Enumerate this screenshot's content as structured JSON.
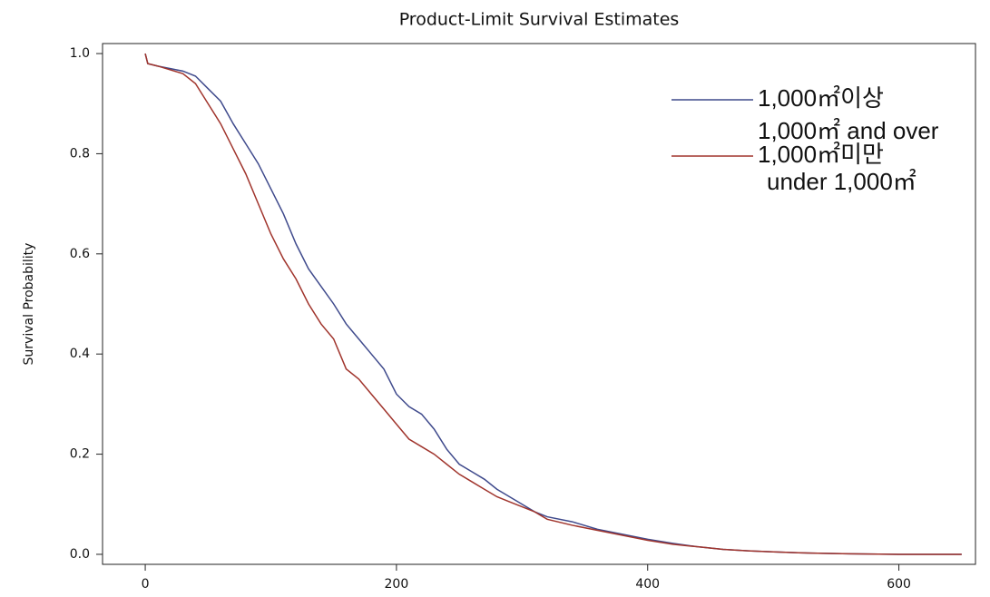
{
  "chart_data": {
    "type": "line",
    "title": "Product-Limit Survival Estimates",
    "y_label": "Survival Probability",
    "x": [
      0,
      2,
      10,
      30,
      40,
      50,
      60,
      70,
      80,
      90,
      100,
      110,
      120,
      130,
      140,
      150,
      160,
      170,
      180,
      190,
      200,
      210,
      220,
      230,
      240,
      250,
      260,
      270,
      280,
      290,
      300,
      310,
      320,
      340,
      360,
      380,
      400,
      420,
      440,
      460,
      480,
      500,
      520,
      540,
      560,
      600,
      650
    ],
    "series": [
      {
        "name": "1,000㎡이상",
        "name_en": "1,000㎡ and over",
        "color": "#3f4a8c",
        "values": [
          1.0,
          0.98,
          0.975,
          0.965,
          0.955,
          0.93,
          0.905,
          0.86,
          0.82,
          0.78,
          0.73,
          0.68,
          0.62,
          0.57,
          0.535,
          0.5,
          0.46,
          0.43,
          0.4,
          0.37,
          0.32,
          0.295,
          0.28,
          0.25,
          0.21,
          0.18,
          0.165,
          0.15,
          0.13,
          0.115,
          0.1,
          0.085,
          0.075,
          0.065,
          0.05,
          0.04,
          0.03,
          0.022,
          0.015,
          0.01,
          0.007,
          0.005,
          0.003,
          0.002,
          0.001,
          0,
          0
        ]
      },
      {
        "name": "1,000㎡미만",
        "name_en": "under 1,000㎡",
        "color": "#a0342c",
        "values": [
          1.0,
          0.98,
          0.975,
          0.96,
          0.94,
          0.9,
          0.86,
          0.81,
          0.76,
          0.7,
          0.64,
          0.59,
          0.55,
          0.5,
          0.46,
          0.43,
          0.37,
          0.35,
          0.32,
          0.29,
          0.26,
          0.23,
          0.215,
          0.2,
          0.18,
          0.16,
          0.145,
          0.13,
          0.115,
          0.105,
          0.095,
          0.085,
          0.07,
          0.058,
          0.048,
          0.038,
          0.028,
          0.02,
          0.015,
          0.01,
          0.007,
          0.005,
          0.003,
          0.002,
          0.001,
          0,
          0
        ]
      }
    ],
    "xlim": [
      -34,
      661
    ],
    "xticks": [
      0,
      200,
      400,
      600
    ],
    "ylim": [
      -0.02,
      1.02
    ],
    "yticks": [
      {
        "value": 0,
        "label": "0.0"
      },
      0.2,
      0.4,
      0.6,
      0.8,
      {
        "value": 1,
        "label": "1.0"
      }
    ]
  }
}
